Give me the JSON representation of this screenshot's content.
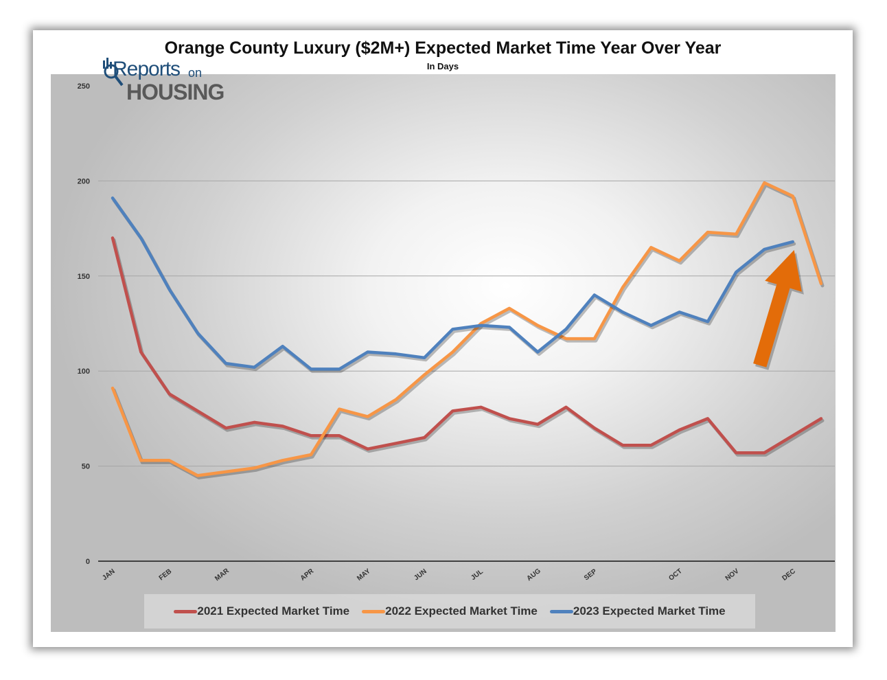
{
  "title": "Orange County Luxury ($2M+) Expected Market Time Year Over Year",
  "subtitle": "In Days",
  "logo": {
    "line1": "Reports",
    "line1_suffix": "on",
    "line2": "HOUSING"
  },
  "colors": {
    "s2021": "#c0504d",
    "s2022": "#f79646",
    "s2023": "#4f81bd",
    "arrow": "#e36c09",
    "grid": "#a6a6a6",
    "axis": "#404040"
  },
  "chart_data": {
    "type": "line",
    "title": "Orange County Luxury ($2M+) Expected Market Time Year Over Year",
    "subtitle": "In Days",
    "xlabel": "",
    "ylabel": "",
    "ylim": [
      0,
      250
    ],
    "yticks": [
      0,
      50,
      100,
      150,
      200,
      250
    ],
    "num_points": 26,
    "month_labels": [
      {
        "label": "JAN",
        "index": 0
      },
      {
        "label": "FEB",
        "index": 2
      },
      {
        "label": "MAR",
        "index": 4
      },
      {
        "label": "APR",
        "index": 7
      },
      {
        "label": "MAY",
        "index": 9
      },
      {
        "label": "JUN",
        "index": 11
      },
      {
        "label": "JUL",
        "index": 13
      },
      {
        "label": "AUG",
        "index": 15
      },
      {
        "label": "SEP",
        "index": 17
      },
      {
        "label": "OCT",
        "index": 20
      },
      {
        "label": "NOV",
        "index": 22
      },
      {
        "label": "DEC",
        "index": 24
      }
    ],
    "series": [
      {
        "name": "2021 Expected Market Time",
        "color": "#c0504d",
        "values": [
          170,
          110,
          88,
          79,
          70,
          73,
          71,
          66,
          66,
          59,
          62,
          65,
          79,
          81,
          75,
          72,
          81,
          70,
          61,
          61,
          69,
          75,
          57,
          57,
          66,
          75
        ]
      },
      {
        "name": "2022 Expected Market Time",
        "color": "#f79646",
        "values": [
          91,
          53,
          53,
          45,
          47,
          49,
          53,
          56,
          80,
          76,
          85,
          98,
          110,
          125,
          133,
          124,
          117,
          117,
          144,
          165,
          158,
          173,
          172,
          199,
          192,
          146
        ]
      },
      {
        "name": "2023 Expected Market Time",
        "color": "#4f81bd",
        "values": [
          191,
          170,
          143,
          120,
          104,
          102,
          113,
          101,
          101,
          110,
          109,
          107,
          122,
          124,
          123,
          110,
          122,
          140,
          131,
          124,
          131,
          126,
          152,
          164,
          168
        ]
      }
    ],
    "annotation": {
      "type": "arrow",
      "direction": "up",
      "target_series": "2023 Expected Market Time",
      "target_index": 24
    },
    "legend_position": "bottom",
    "grid": true
  }
}
